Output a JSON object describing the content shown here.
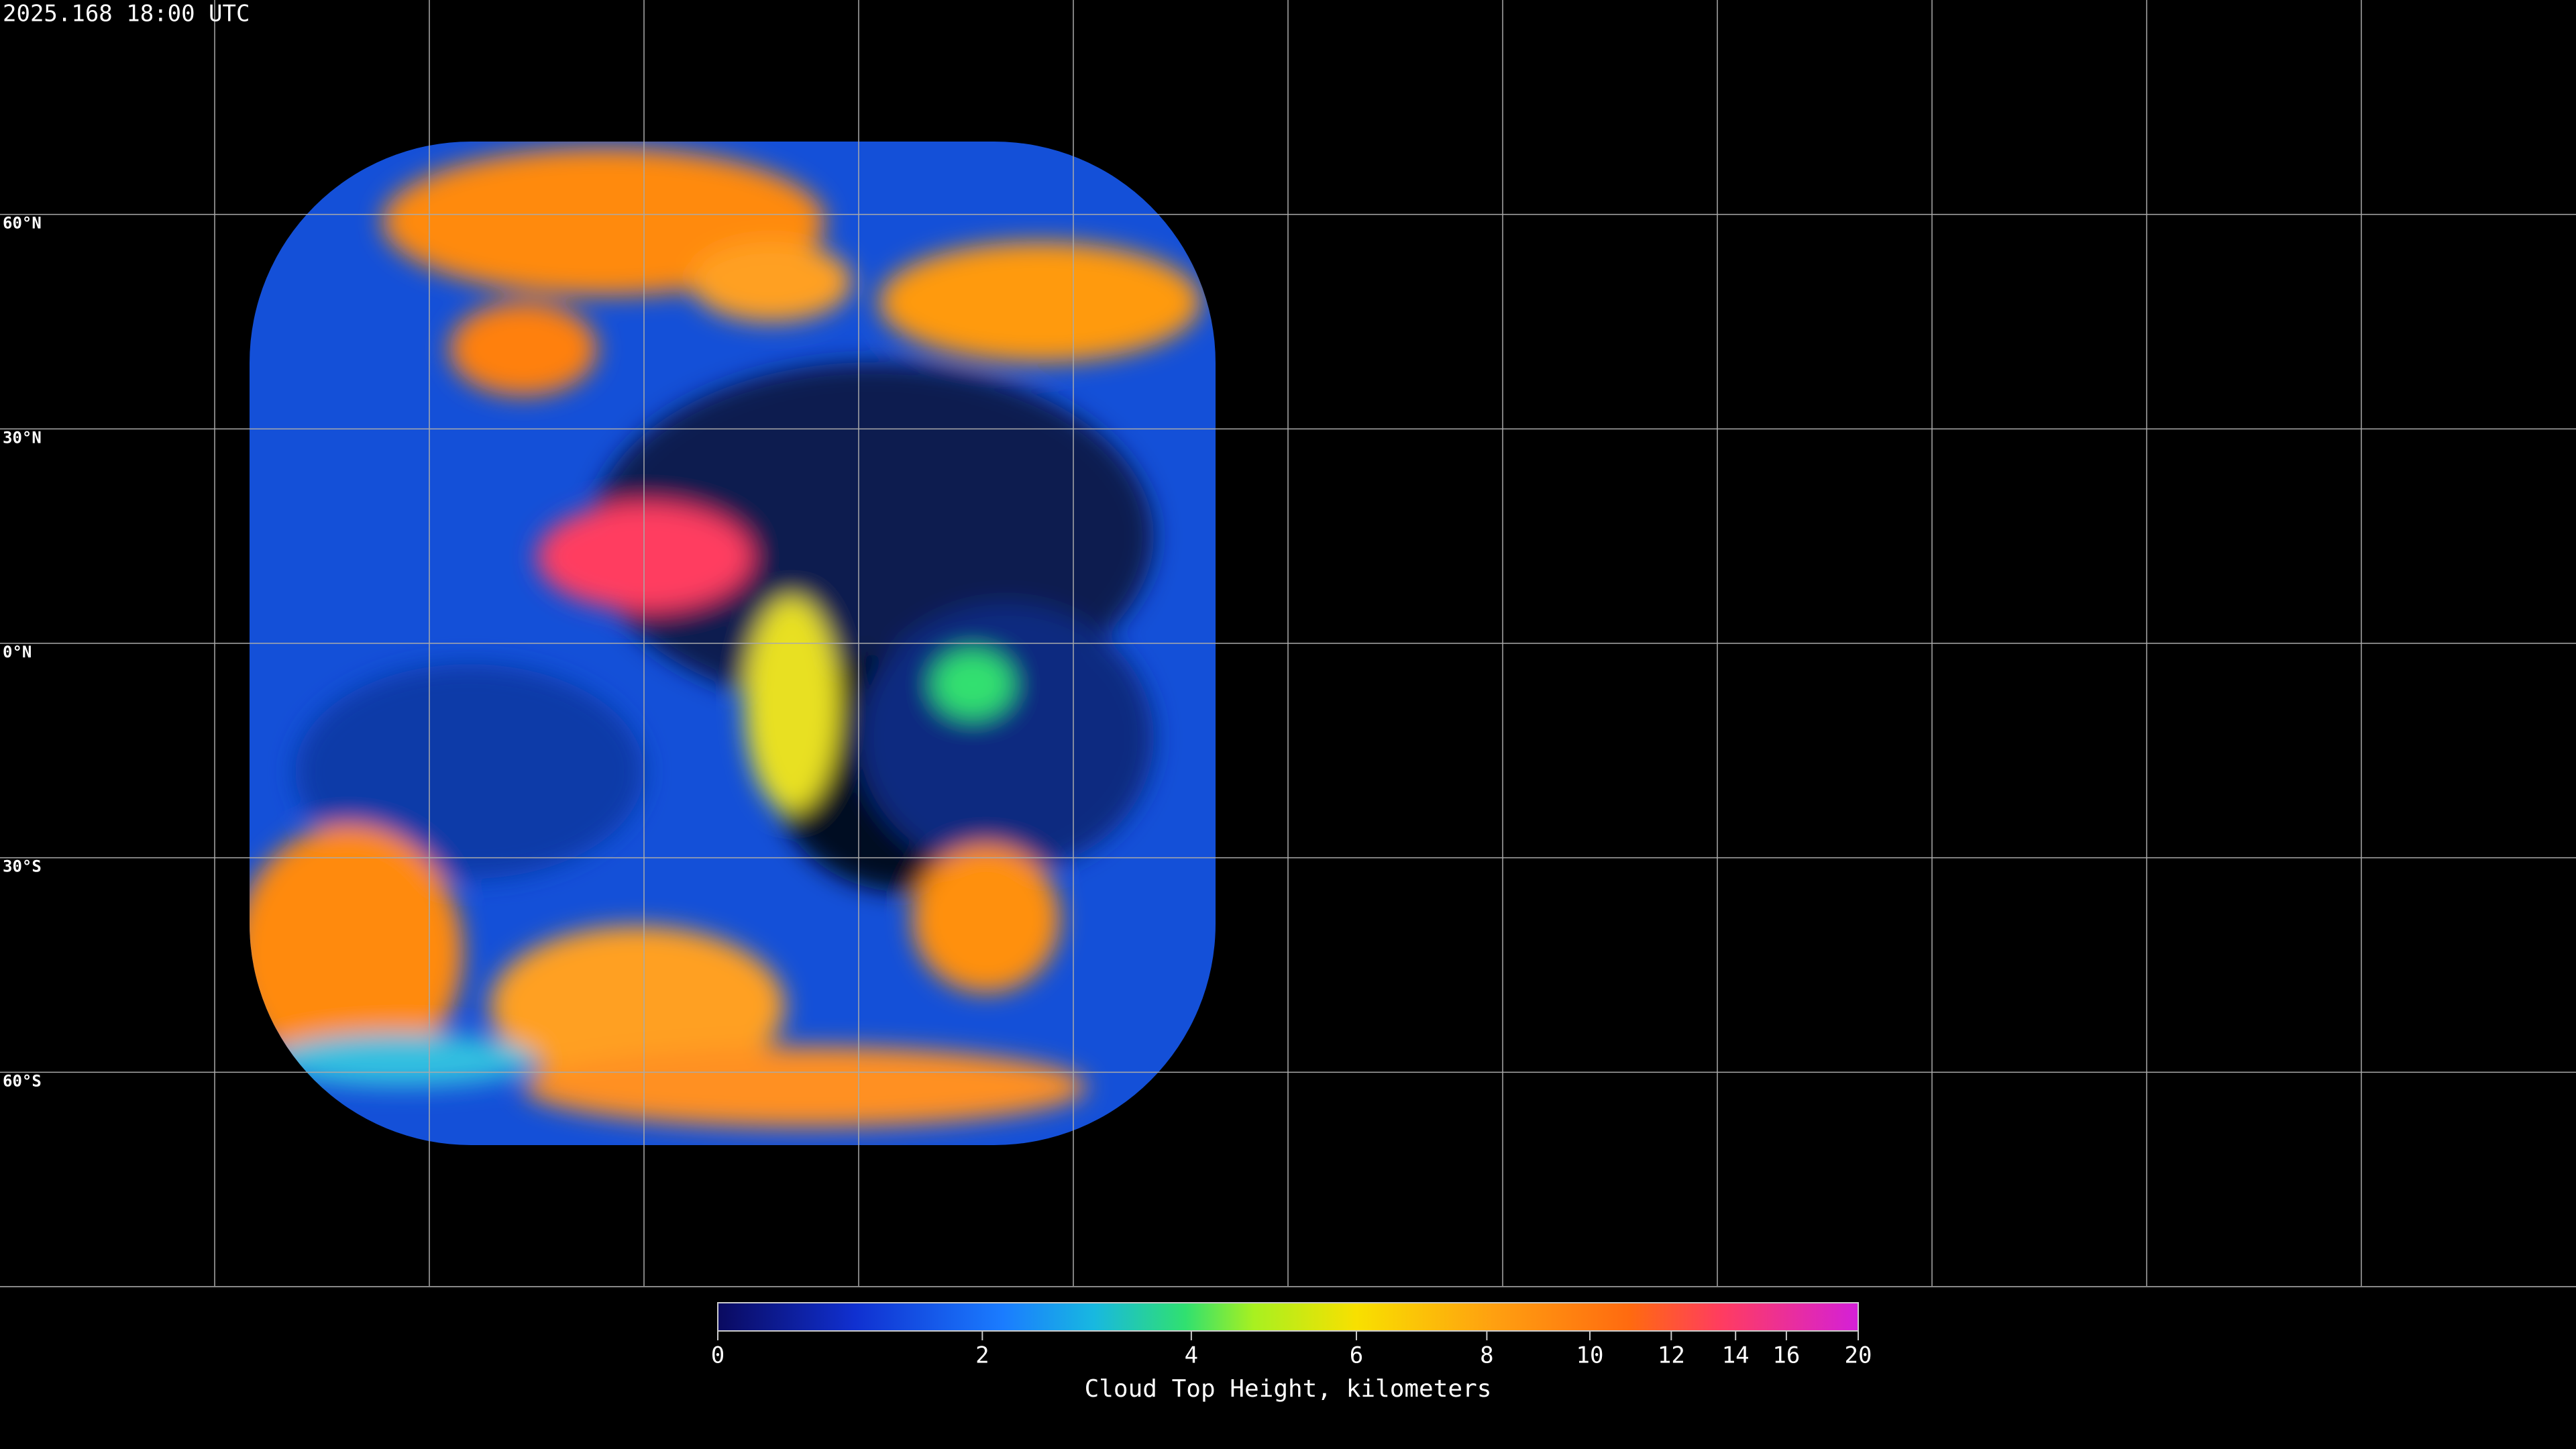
{
  "header": {
    "timestamp": "2025.168 18:00 UTC"
  },
  "map": {
    "latitude_lines": [
      {
        "value": 60,
        "label": "60°N"
      },
      {
        "value": 30,
        "label": "30°N"
      },
      {
        "value": 0,
        "label": "0°N"
      },
      {
        "value": -30,
        "label": "30°S"
      },
      {
        "value": -60,
        "label": "60°S"
      }
    ]
  },
  "colorbar": {
    "label": "Cloud Top Height, kilometers",
    "range": [
      0,
      20
    ],
    "ticks": [
      0,
      2,
      4,
      6,
      8,
      10,
      12,
      14,
      16,
      20
    ]
  }
}
